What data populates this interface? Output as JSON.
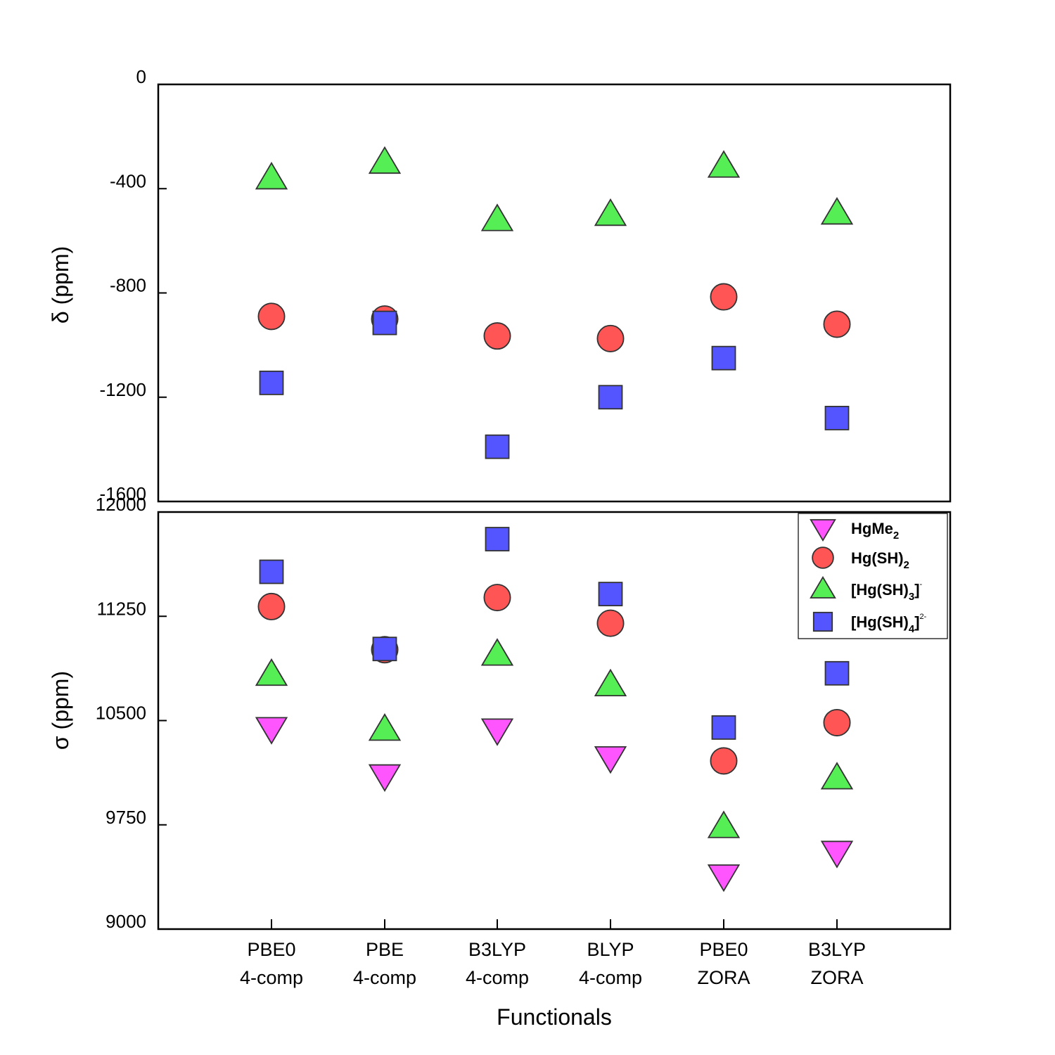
{
  "chart_data": {
    "type": "scatter",
    "xlabel": "Functionals",
    "categories": [
      {
        "line1": "PBE0",
        "line2": "4-comp"
      },
      {
        "line1": "PBE",
        "line2": "4-comp"
      },
      {
        "line1": "B3LYP",
        "line2": "4-comp"
      },
      {
        "line1": "BLYP",
        "line2": "4-comp"
      },
      {
        "line1": "PBE0",
        "line2": "ZORA"
      },
      {
        "line1": "B3LYP",
        "line2": "ZORA"
      }
    ],
    "colors": {
      "HgMe2": "#ff55ff",
      "HgSH2": "#ff5555",
      "HgSH3": "#55ee55",
      "HgSH4": "#5555ff",
      "outline": "#333333"
    },
    "legend": {
      "position": "top-right of lower panel",
      "entries": [
        {
          "series": "HgMe2",
          "marker": "triangle-down",
          "text": "HgMe",
          "sub": "2",
          "sup": ""
        },
        {
          "series": "HgSH2",
          "marker": "circle",
          "text": "Hg(SH)",
          "sub": "2",
          "sup": ""
        },
        {
          "series": "HgSH3",
          "marker": "triangle-up",
          "text": "[Hg(SH)",
          "sub": "3",
          "close": "]",
          "sup": "-"
        },
        {
          "series": "HgSH4",
          "marker": "square",
          "text": "[Hg(SH)",
          "sub": "4",
          "close": "]",
          "sup": "2-"
        }
      ]
    },
    "panels": [
      {
        "id": "top",
        "ylabel": "δ (ppm)",
        "ylim": [
          -1600,
          0
        ],
        "yticks": [
          0,
          -400,
          -800,
          -1200,
          -1600
        ],
        "ytick_labels": [
          "0",
          "-400",
          "-800",
          "-1200",
          "-1600"
        ],
        "series": [
          {
            "key": "HgSH2",
            "marker": "circle",
            "values": [
              -890,
              -900,
              -965,
              -975,
              -815,
              -920
            ]
          },
          {
            "key": "HgSH3",
            "marker": "triangle-up",
            "values": [
              -360,
              -300,
              -520,
              -500,
              -315,
              -495
            ]
          },
          {
            "key": "HgSH4",
            "marker": "square",
            "values": [
              -1145,
              -915,
              -1390,
              -1200,
              -1050,
              -1280
            ]
          }
        ]
      },
      {
        "id": "bottom",
        "ylabel": "σ (ppm)",
        "ylim": [
          9000,
          12000
        ],
        "yticks": [
          12000,
          11250,
          10500,
          9750,
          9000
        ],
        "ytick_labels": [
          "12000",
          "11250",
          "10500",
          "9750",
          "9000"
        ],
        "series": [
          {
            "key": "HgMe2",
            "marker": "triangle-down",
            "values": [
              10445,
              10105,
              10435,
              10235,
              9385,
              9555
            ]
          },
          {
            "key": "HgSH2",
            "marker": "circle",
            "values": [
              11320,
              11010,
              11385,
              11200,
              10210,
              10485
            ]
          },
          {
            "key": "HgSH3",
            "marker": "triangle-up",
            "values": [
              10830,
              10435,
              10975,
              10755,
              9735,
              10085
            ]
          },
          {
            "key": "HgSH4",
            "marker": "square",
            "values": [
              11570,
              11015,
              11805,
              11410,
              10450,
              10840
            ]
          }
        ]
      }
    ]
  }
}
